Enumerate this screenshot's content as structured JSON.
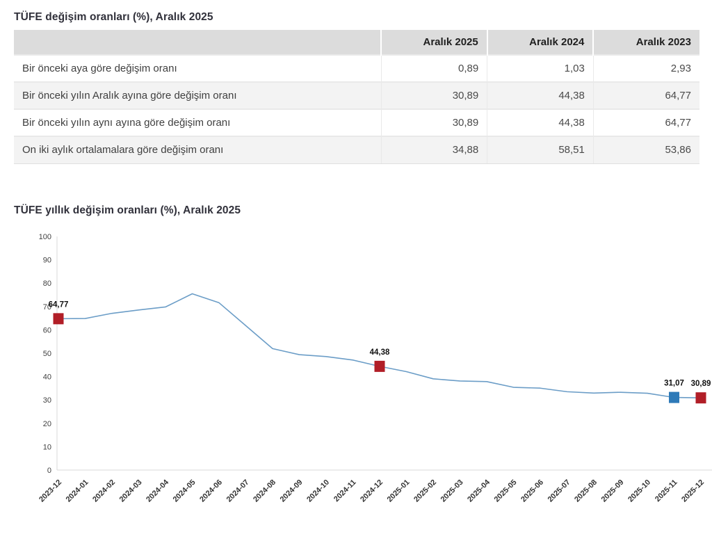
{
  "table_section": {
    "title": "TÜFE değişim oranları (%), Aralık 2025",
    "columns": [
      "Aralık 2025",
      "Aralık 2024",
      "Aralık 2023"
    ],
    "rows": [
      {
        "label": "Bir önceki aya göre değişim oranı",
        "values": [
          "0,89",
          "1,03",
          "2,93"
        ]
      },
      {
        "label": "Bir önceki yılın Aralık ayına göre değişim oranı",
        "values": [
          "30,89",
          "44,38",
          "64,77"
        ]
      },
      {
        "label": "Bir önceki yılın aynı ayına göre değişim oranı",
        "values": [
          "30,89",
          "44,38",
          "64,77"
        ]
      },
      {
        "label": "On iki aylık ortalamalara göre değişim oranı",
        "values": [
          "34,88",
          "58,51",
          "53,86"
        ]
      }
    ]
  },
  "chart_section": {
    "title": "TÜFE yıllık değişim oranları (%), Aralık 2025"
  },
  "chart_data": {
    "type": "line",
    "title": "TÜFE yıllık değişim oranları (%), Aralık 2025",
    "x": [
      "2023-12",
      "2024-01",
      "2024-02",
      "2024-03",
      "2024-04",
      "2024-05",
      "2024-06",
      "2024-07",
      "2024-08",
      "2024-09",
      "2024-10",
      "2024-11",
      "2024-12",
      "2025-01",
      "2025-02",
      "2025-03",
      "2025-04",
      "2025-05",
      "2025-06",
      "2025-07",
      "2025-08",
      "2025-09",
      "2025-10",
      "2025-11",
      "2025-12"
    ],
    "values": [
      64.77,
      64.86,
      67.07,
      68.5,
      69.8,
      75.45,
      71.6,
      61.78,
      51.97,
      49.38,
      48.58,
      47.09,
      44.38,
      42.12,
      39.05,
      38.1,
      37.86,
      35.41,
      35.05,
      33.52,
      32.95,
      33.29,
      32.87,
      31.07,
      30.89
    ],
    "ylabel": "",
    "xlabel": "",
    "ylim": [
      0,
      100
    ],
    "ytick_step": 10,
    "grid": false,
    "legend": false,
    "line_color": "#6b9dc7",
    "axis_color": "#d9d9d9",
    "annotations": [
      {
        "x": "2023-12",
        "index": 0,
        "label": "64,77",
        "marker_color": "#b11e27"
      },
      {
        "x": "2024-12",
        "index": 12,
        "label": "44,38",
        "marker_color": "#b11e27"
      },
      {
        "x": "2025-11",
        "index": 23,
        "label": "31,07",
        "marker_color": "#2e7ab8"
      },
      {
        "x": "2025-12",
        "index": 24,
        "label": "30,89",
        "marker_color": "#b11e27"
      }
    ]
  }
}
